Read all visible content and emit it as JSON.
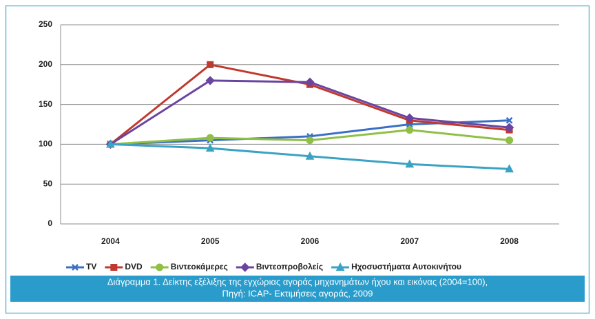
{
  "chart_data": {
    "type": "line",
    "categories": [
      "2004",
      "2005",
      "2006",
      "2007",
      "2008"
    ],
    "series": [
      {
        "name": "TV",
        "color": "#3b6fc6",
        "marker": "x",
        "values": [
          100,
          105,
          110,
          125,
          130
        ]
      },
      {
        "name": "DVD",
        "color": "#c0392f",
        "marker": "square",
        "values": [
          100,
          200,
          175,
          130,
          118
        ]
      },
      {
        "name": "Βιντεοκάμερες",
        "color": "#8fbf45",
        "marker": "circle",
        "values": [
          100,
          108,
          105,
          118,
          105
        ]
      },
      {
        "name": "Βιντεοπροβολείς",
        "color": "#6a44a0",
        "marker": "diamond",
        "values": [
          100,
          180,
          178,
          133,
          121
        ]
      },
      {
        "name": "Ηχοσυστήματα Αυτοκινήτου",
        "color": "#3aa3c4",
        "marker": "triangle",
        "values": [
          100,
          95,
          85,
          75,
          69
        ]
      }
    ],
    "ylim": [
      0,
      250
    ],
    "yticks": [
      0,
      50,
      100,
      150,
      200,
      250
    ],
    "grid": true,
    "legend": "bottom",
    "caption": [
      "Διάγραμμα 1. Δείκτης εξέλιξης της εγχώριας αγοράς μηχανημάτων ήχου και εικόνας (2004=100),",
      "Πηγή: ICAP- Εκτιμήσεις αγοράς, 2009"
    ],
    "caption_color": "#2a9ccb"
  }
}
